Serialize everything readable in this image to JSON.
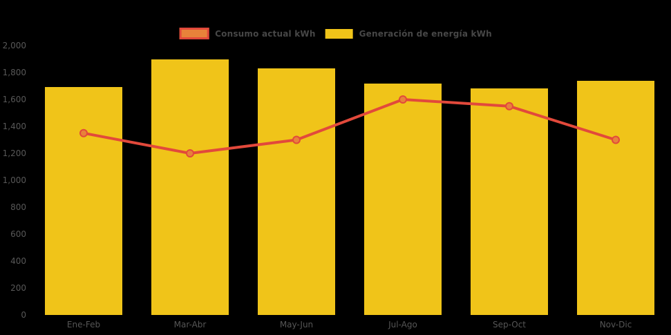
{
  "background_color": "#000000",
  "legend": {
    "position": "top-center",
    "items": [
      {
        "label": "Consumo actual kWh",
        "type": "line",
        "swatch_fill": "#E8823A",
        "swatch_border": "#E2493B"
      },
      {
        "label": "Generación de energía kWh",
        "type": "bar",
        "swatch_fill": "#F0C419",
        "swatch_border": "#F0C419"
      }
    ]
  },
  "chart_data": {
    "type": "bar+line",
    "title": "",
    "xlabel": "",
    "ylabel": "",
    "categories": [
      "Ene-Feb",
      "Mar-Abr",
      "May-Jun",
      "Jul-Ago",
      "Sep-Oct",
      "Nov-Dic"
    ],
    "series": [
      {
        "name": "Generación de energía kWh",
        "type": "bar",
        "color": "#F0C419",
        "values": [
          1690,
          1900,
          1830,
          1720,
          1680,
          1740
        ]
      },
      {
        "name": "Consumo actual kWh",
        "type": "line",
        "color": "#E2493B",
        "marker_fill": "#E8823A",
        "marker_stroke": "#E2493B",
        "values": [
          1350,
          1200,
          1300,
          1600,
          1550,
          1300
        ]
      }
    ],
    "ylim": [
      0,
      2000
    ],
    "ytick_step": 200,
    "ytick_labels": [
      "0",
      "200",
      "400",
      "600",
      "800",
      "1,000",
      "1,200",
      "1,400",
      "1,600",
      "1,800",
      "2,000"
    ],
    "grid": false,
    "axis_text_color": "#585858",
    "legend_position": "top"
  }
}
